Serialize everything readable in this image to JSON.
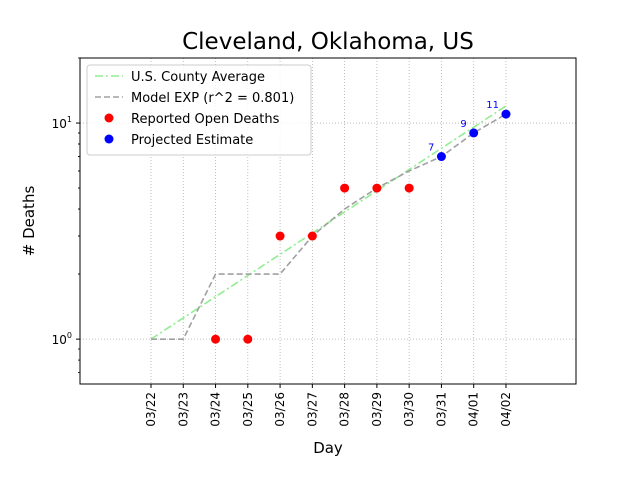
{
  "chart_data": {
    "type": "scatter",
    "title": "Cleveland, Oklahoma, US",
    "xlabel": "Day",
    "ylabel": "# Deaths",
    "yscale": "log",
    "ylim": [
      0.62,
      20
    ],
    "x_ticks": [
      "03/22",
      "03/23",
      "03/24",
      "03/25",
      "03/26",
      "03/27",
      "03/28",
      "03/29",
      "03/30",
      "03/31",
      "04/01",
      "04/02"
    ],
    "y_ticks": [
      {
        "value": 1,
        "base": "10",
        "exp": "0"
      },
      {
        "value": 10,
        "base": "10",
        "exp": "1"
      }
    ],
    "grid": true,
    "legend_position": "top-left",
    "series": [
      {
        "name": "U.S. County Average",
        "kind": "line",
        "style": "dashdot",
        "color": "#90ee90",
        "x": [
          "03/22",
          "04/02"
        ],
        "y": [
          1,
          12
        ]
      },
      {
        "name": "Model EXP (r^2 = 0.801)",
        "kind": "line",
        "style": "dashed",
        "color": "#a0a0a0",
        "x": [
          "03/22",
          "03/23",
          "03/24",
          "03/25",
          "03/26",
          "03/27",
          "03/28",
          "03/29",
          "03/30",
          "03/31",
          "04/01",
          "04/02"
        ],
        "y": [
          1,
          1,
          2,
          2,
          2,
          3,
          4,
          5,
          6,
          7,
          9,
          11
        ]
      },
      {
        "name": "Reported Open Deaths",
        "kind": "points",
        "color": "#ff0000",
        "x": [
          "03/24",
          "03/25",
          "03/26",
          "03/27",
          "03/28",
          "03/29",
          "03/30"
        ],
        "y": [
          1,
          1,
          3,
          3,
          5,
          5,
          5
        ]
      },
      {
        "name": "Projected Estimate",
        "kind": "points",
        "color": "#0000ff",
        "x": [
          "03/31",
          "04/01",
          "04/02"
        ],
        "y": [
          7,
          9,
          11
        ],
        "labels": [
          "7",
          "9",
          "11"
        ]
      }
    ]
  }
}
